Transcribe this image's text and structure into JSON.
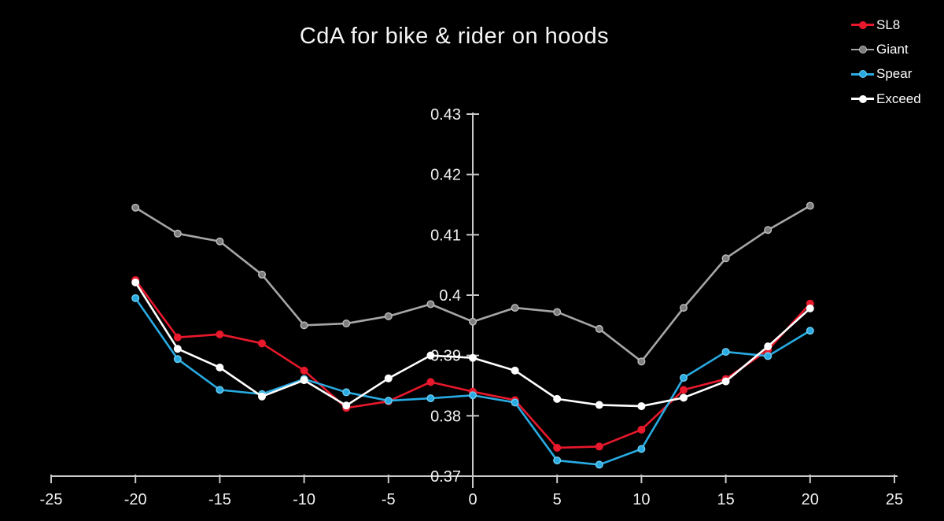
{
  "title": "CdA for bike & rider on hoods",
  "colors": {
    "background": "#000000",
    "axis": "#c9c9c9",
    "tick_text": "#f2f2f2",
    "title_text": "#f5f5f5"
  },
  "chart_data": {
    "type": "line",
    "title": "CdA for bike & rider on hoods",
    "xlabel": "",
    "ylabel": "",
    "xlim": [
      -25,
      25
    ],
    "ylim": [
      0.37,
      0.43
    ],
    "grid": false,
    "legend_position": "top-right",
    "x_ticks": [
      -25,
      -20,
      -15,
      -10,
      -5,
      0,
      5,
      10,
      15,
      20,
      25
    ],
    "y_ticks": [
      0.37,
      0.38,
      0.39,
      0.4,
      0.41,
      0.42,
      0.43
    ],
    "y_tick_labels": [
      "0.37",
      "0.38",
      "0.39",
      "0.4",
      "0.41",
      "0.42",
      "0.43"
    ],
    "x": [
      -20,
      -17.5,
      -15,
      -12.5,
      -10,
      -7.5,
      -5,
      -2.5,
      0,
      2.5,
      5,
      7.5,
      10,
      12.5,
      15,
      17.5,
      20
    ],
    "series": [
      {
        "name": "SL8",
        "color": "#e8192c",
        "marker_fill": "#e8192c",
        "marker_stroke": "#e8192c",
        "values": [
          0.4025,
          0.393,
          0.3935,
          0.392,
          0.3875,
          0.3813,
          0.3824,
          0.3856,
          0.384,
          0.3826,
          0.3747,
          0.3749,
          0.3777,
          0.3843,
          0.3861,
          0.3909,
          0.3986
        ]
      },
      {
        "name": "Giant",
        "color": "#a6a6a6",
        "marker_fill": "#7d7d7d",
        "marker_stroke": "#bdbdbd",
        "values": [
          0.4145,
          0.4102,
          0.4089,
          0.4034,
          0.395,
          0.3953,
          0.3965,
          0.3985,
          0.3956,
          0.3979,
          0.3972,
          0.3944,
          0.389,
          0.3979,
          0.4061,
          0.4108,
          0.4148
        ]
      },
      {
        "name": "Spear",
        "color": "#29abe2",
        "marker_fill": "#29abe2",
        "marker_stroke": "#6ccdf2",
        "values": [
          0.3995,
          0.3894,
          0.3843,
          0.3836,
          0.3861,
          0.3839,
          0.3825,
          0.3829,
          0.3834,
          0.3822,
          0.3726,
          0.3719,
          0.3745,
          0.3863,
          0.3906,
          0.3899,
          0.3941
        ]
      },
      {
        "name": "Exceed",
        "color": "#ffffff",
        "marker_fill": "#ffffff",
        "marker_stroke": "#ffffff",
        "values": [
          0.4021,
          0.3911,
          0.388,
          0.3832,
          0.3859,
          0.3817,
          0.3862,
          0.39,
          0.3896,
          0.3875,
          0.3828,
          0.3818,
          0.3816,
          0.383,
          0.3857,
          0.3915,
          0.3978
        ]
      }
    ]
  }
}
